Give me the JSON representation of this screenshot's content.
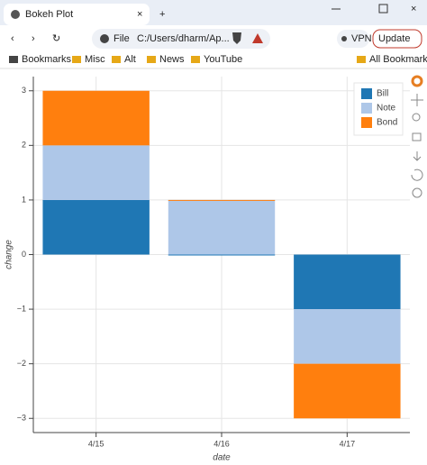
{
  "browser": {
    "tab_title": "Bokeh Plot",
    "scheme": "File",
    "address": "C:/Users/dharm/Ap...",
    "vpn": "VPN",
    "update": "Update",
    "bookmarks": [
      "Bookmarks",
      "Misc",
      "Alt",
      "News",
      "YouTube"
    ],
    "all_bookmarks": "All Bookmarks"
  },
  "chart_data": {
    "type": "bar",
    "stacked": true,
    "x_label": "date",
    "y_label": "change",
    "categories": [
      "4/15",
      "4/16",
      "4/17"
    ],
    "series": [
      {
        "name": "Bill",
        "color": "#1f77b4",
        "values": [
          1,
          0,
          -1
        ]
      },
      {
        "name": "Note",
        "color": "#aec7e8",
        "values": [
          1,
          1,
          -1
        ]
      },
      {
        "name": "Bond",
        "color": "#ff7f0e",
        "values": [
          1,
          0,
          -1
        ]
      }
    ],
    "ylim": [
      -3.26,
      3.26
    ],
    "yticks": [
      {
        "value": -3,
        "label": "−3"
      },
      {
        "value": -2,
        "label": "−2"
      },
      {
        "value": -1,
        "label": "−1"
      },
      0,
      1,
      2,
      3
    ],
    "grid": true,
    "legend": "top-right"
  }
}
